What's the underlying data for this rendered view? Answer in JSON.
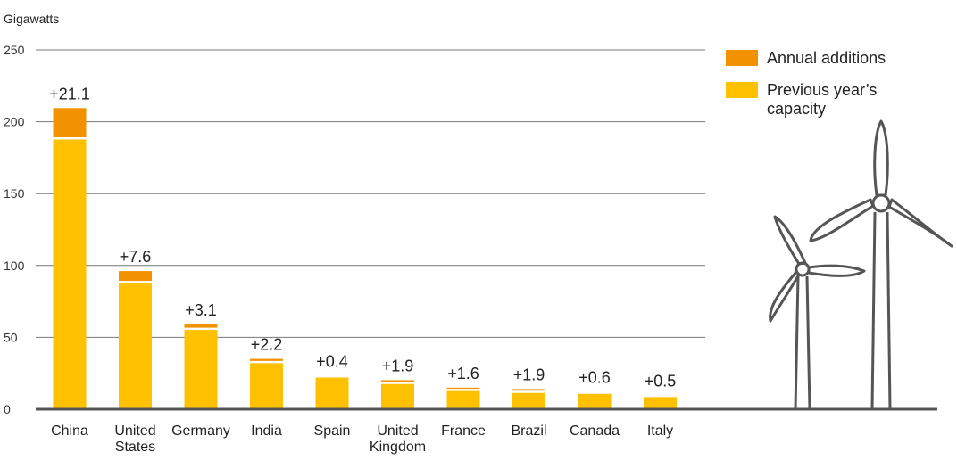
{
  "chart_data": {
    "type": "bar",
    "stacked": true,
    "ylabel": "Gigawatts",
    "ylim": [
      0,
      250
    ],
    "yticks": [
      0,
      50,
      100,
      150,
      200,
      250
    ],
    "grid": true,
    "legend_position": "top-right",
    "categories": [
      [
        "China"
      ],
      [
        "United",
        "States"
      ],
      [
        "Germany"
      ],
      [
        "India"
      ],
      [
        "Spain"
      ],
      [
        "United",
        "Kingdom"
      ],
      [
        "France"
      ],
      [
        "Brazil"
      ],
      [
        "Canada"
      ],
      [
        "Italy"
      ]
    ],
    "series": [
      {
        "name": "Previous year’s capacity",
        "legend_lines": [
          "Previous year’s",
          "capacity"
        ],
        "color": "#FFC000",
        "values": [
          188.4,
          88.5,
          55.9,
          32.8,
          22.8,
          18.3,
          13.4,
          12.1,
          11.5,
          9.2
        ]
      },
      {
        "name": "Annual additions",
        "legend_lines": [
          "Annual additions"
        ],
        "color": "#F39200",
        "values": [
          21.1,
          7.6,
          3.1,
          2.2,
          0.4,
          1.9,
          1.6,
          1.9,
          0.6,
          0.5
        ]
      }
    ],
    "data_labels": [
      "+21.1",
      "+7.6",
      "+3.1",
      "+2.2",
      "+0.4",
      "+1.9",
      "+1.6",
      "+1.9",
      "+0.6",
      "+0.5"
    ],
    "illustration": "wind-turbines"
  }
}
